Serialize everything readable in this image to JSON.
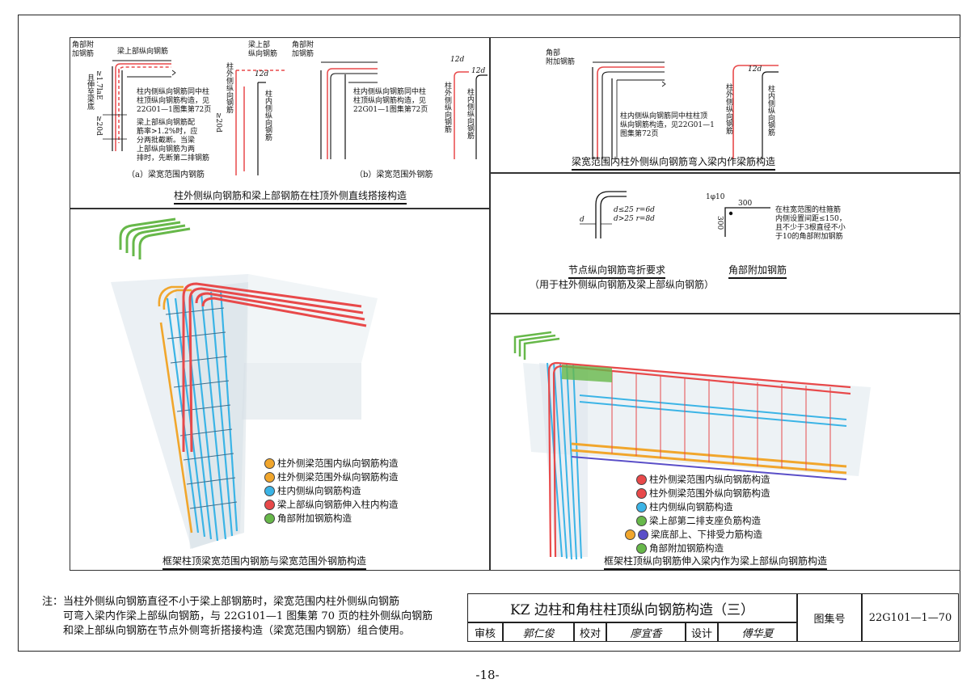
{
  "colors": {
    "red": "#e8494a",
    "orange": "#f1a62c",
    "blue": "#3bb4e6",
    "green": "#67b84a",
    "purple": "#5a4fc8"
  },
  "top_left": {
    "a_labels": [
      "角部附加钢筋",
      "梁上部纵向钢筋"
    ],
    "a_vertical": [
      "≥1.7laE",
      "且伸至梁底",
      "≥20d",
      "≥20d"
    ],
    "a_note_1": [
      "柱内侧纵向钢筋同中柱",
      "柱顶纵向钢筋构造，见",
      "22G01—1图集第72页"
    ],
    "a_note_2": [
      "梁上部纵向钢筋配",
      "筋率>1.2%时，应",
      "分两批截断。当梁",
      "上部纵向钢筋为两",
      "排时，先断第二排钢筋"
    ],
    "a_caption": "（a）梁宽范围内钢筋",
    "b_labels": [
      "梁上部",
      "纵向钢筋",
      "角部附",
      "加钢筋"
    ],
    "b_vertical": [
      "柱外侧纵向钢筋",
      "柱内侧纵向钢筋",
      "柱外侧纵向钢筋",
      "柱内侧纵向钢筋"
    ],
    "b_dims": [
      "12d",
      "12d",
      "12d"
    ],
    "b_note": [
      "柱内侧纵向钢筋同中柱",
      "柱顶纵向钢筋构造，见",
      "22G01—1图集第72页"
    ],
    "b_caption": "（b）梁宽范围外钢筋",
    "title": "柱外侧纵向钢筋和梁上部钢筋在柱顶外侧直线搭接构造"
  },
  "top_right": {
    "labels": [
      "角部",
      "附加钢筋"
    ],
    "note": [
      "柱内侧纵向钢筋同中柱柱顶",
      "纵向钢筋构造，见22G01—1",
      "图集第72页"
    ],
    "dim": "12d",
    "vertical": [
      "柱外侧纵向钢筋",
      "柱内侧纵向钢筋"
    ],
    "title": "梁宽范围内柱外侧纵向钢筋弯入梁内作梁筋构造"
  },
  "middle_right": {
    "bend_rules": [
      "d≤25   r=6d",
      "d>25   r=8d"
    ],
    "bend_d": "d",
    "bend_title": "节点纵向钢筋弯折要求",
    "bend_subtitle": "（用于柱外侧纵向钢筋及梁上部纵向钢筋）",
    "corner_label": "1φ10",
    "corner_dims": [
      "300",
      "300"
    ],
    "corner_note": [
      "在柱宽范围的柱箍筋",
      "内侧设置间距≤150，",
      "且不少于3根直径不小",
      "于10的角部附加钢筋"
    ],
    "corner_title": "角部附加钢筋"
  },
  "middle_left": {
    "legend": [
      {
        "color": "orange",
        "text": "柱外侧梁范围内纵向钢筋构造"
      },
      {
        "color": "orange",
        "text": "柱外侧梁范围外纵向钢筋构造"
      },
      {
        "color": "blue",
        "text": "柱内侧纵向钢筋构造"
      },
      {
        "color": "red",
        "text": "梁上部纵向钢筋伸入柱内构造"
      },
      {
        "color": "green",
        "text": "角部附加钢筋构造"
      }
    ],
    "title": "框架柱顶梁宽范围内钢筋与梁宽范围外钢筋构造"
  },
  "bottom_right": {
    "legend": [
      {
        "color": "red",
        "text": "柱外侧梁范围内纵向钢筋构造"
      },
      {
        "color": "red",
        "text": "柱外侧梁范围外纵向钢筋构造"
      },
      {
        "color": "blue",
        "text": "柱内侧纵向钢筋构造"
      },
      {
        "color": "green",
        "text": "梁上部第二排支座负筋构造"
      },
      {
        "color": "orange",
        "color2": "purple",
        "text": "梁底部上、下排受力筋构造"
      },
      {
        "color": "green",
        "text": "角部附加钢筋构造"
      }
    ],
    "title": "框架柱顶纵向钢筋伸入梁内作为梁上部纵向钢筋构造"
  },
  "note": {
    "prefix": "注：",
    "lines": [
      "当柱外侧纵向钢筋直径不小于梁上部钢筋时，梁宽范围内柱外侧纵向钢筋",
      "可弯入梁内作梁上部纵向钢筋，与 22G101—1 图集第 70 页的柱外侧纵向钢筋",
      "和梁上部纵向钢筋在节点外侧弯折搭接构造（梁宽范围内钢筋）组合使用。"
    ]
  },
  "title_block": {
    "title": "KZ 边柱和角柱柱顶纵向钢筋构造（三）",
    "atlas_label": "图集号",
    "atlas_no": "22G101—1—70",
    "review_label": "审核",
    "review_name": "郭仁俊",
    "check_label": "校对",
    "check_name": "廖宜香",
    "design_label": "设计",
    "design_name": "傅华夏"
  },
  "page_number": "-18-"
}
